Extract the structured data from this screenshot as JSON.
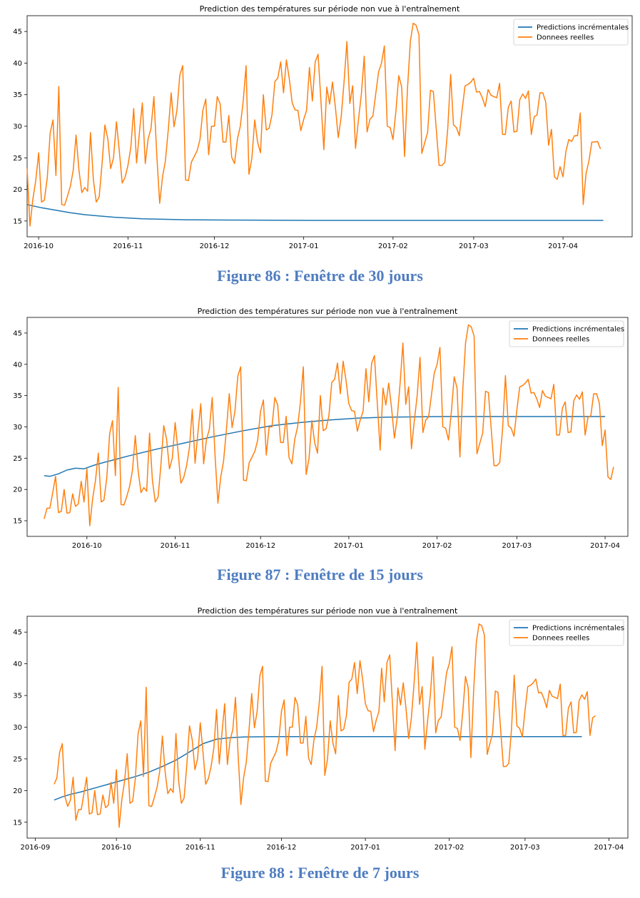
{
  "colors": {
    "prediction": "#1f77b4",
    "reelles": "#ff7f0e",
    "caption": "#4F7DC0"
  },
  "captions": [
    "Figure 86 : Fenêtre de 30 jours",
    "Figure 87 : Fenêtre de 15 jours",
    "Figure 88 : Fenêtre de 7 jours"
  ],
  "chart_data": [
    {
      "type": "line",
      "title": "Prediction des températures sur période non vue à l'entraînement",
      "legend": {
        "position": "top-right",
        "entries": [
          "Predictions incrémentales",
          "Donnees reelles"
        ]
      },
      "x_ticks": [
        "2016-10",
        "2016-11",
        "2016-12",
        "2017-01",
        "2017-02",
        "2017-03",
        "2017-04"
      ],
      "y_ticks": [
        "15",
        "20",
        "25",
        "30",
        "35",
        "40",
        "45"
      ],
      "xlim": [
        0,
        210
      ],
      "ylim": [
        12.5,
        47.5
      ],
      "x_tick_positions": [
        4,
        35,
        65,
        96,
        127,
        155,
        186
      ],
      "series": [
        {
          "name": "Predictions incrémentales",
          "x": [
            0,
            5,
            10,
            15,
            20,
            30,
            40,
            55,
            70,
            100,
            130,
            160,
            200
          ],
          "values": [
            17.6,
            17.1,
            16.7,
            16.3,
            16.0,
            15.6,
            15.35,
            15.2,
            15.15,
            15.1,
            15.1,
            15.1,
            15.1
          ]
        },
        {
          "name": "Donnees reelles",
          "x_start": 0,
          "values": [
            23.3,
            14.2,
            18.5,
            21.4,
            25.8,
            18.0,
            18.3,
            21.9,
            28.9,
            31.0,
            22.2,
            36.3,
            17.6,
            17.5,
            18.9,
            20.5,
            23.0,
            28.6,
            23.0,
            19.5,
            20.3,
            19.7,
            29.0,
            21.5,
            18.0,
            18.8,
            24.0,
            30.2,
            28.0,
            23.3,
            25.0,
            30.7,
            26.1,
            21.0,
            21.9,
            23.8,
            26.7,
            32.8,
            24.2,
            29.1,
            33.7,
            24.1,
            28.0,
            29.6,
            34.7,
            25.5,
            17.8,
            22.0,
            24.5,
            29.5,
            35.3,
            29.9,
            32.5,
            38.1,
            39.6,
            21.5,
            21.4,
            24.3,
            25.2,
            26.1,
            27.9,
            32.5,
            34.3,
            25.5,
            30.0,
            30.0,
            34.7,
            33.5,
            27.5,
            27.5,
            31.7,
            25.1,
            24.1,
            28.0,
            30.0,
            34.0,
            39.6,
            22.4,
            24.9,
            31.0,
            27.5,
            25.8,
            35.0,
            29.4,
            29.7,
            31.8,
            37.1,
            37.6,
            40.2,
            35.3,
            40.5,
            37.5,
            33.7,
            32.6,
            32.5,
            29.3,
            31.1,
            32.5,
            39.3,
            34.0,
            40.2,
            41.4,
            33.8,
            26.3,
            36.2,
            33.5,
            37.0,
            33.0,
            28.2,
            31.5,
            37.0,
            43.4,
            33.6,
            36.4,
            26.5,
            31.0,
            35.0,
            41.1,
            29.1,
            31.1,
            31.6,
            35.1,
            38.6,
            40.0,
            42.7,
            30.0,
            29.8,
            27.9,
            32.4,
            38.0,
            36.2,
            25.2,
            35.7,
            43.4,
            46.3,
            46.0,
            44.5,
            25.7,
            27.4,
            29.0,
            35.7,
            35.5,
            29.6,
            23.8,
            23.8,
            24.3,
            29.7,
            38.2,
            30.2,
            29.8,
            28.5,
            32.7,
            36.4,
            36.6,
            37.0,
            37.6,
            35.4,
            35.5,
            34.5,
            33.1,
            35.8,
            34.9,
            34.7,
            34.5,
            36.8,
            28.7,
            28.7,
            33.0,
            34.0,
            29.1,
            29.2,
            34.2,
            35.1,
            34.4,
            35.6,
            28.7,
            31.5,
            31.8,
            35.3,
            35.3,
            33.8,
            27.0,
            29.5,
            22.0,
            21.6,
            23.6,
            22.0,
            26.0,
            27.9,
            27.6,
            28.5,
            28.5,
            32.1,
            17.6,
            22.5,
            24.5,
            27.5,
            27.5,
            27.6,
            26.4
          ]
        }
      ]
    },
    {
      "type": "line",
      "title": "Prediction des températures sur période non vue à l'entraînement",
      "legend": {
        "position": "top-right",
        "entries": [
          "Predictions incrémentales",
          "Donnees reelles"
        ]
      },
      "x_ticks": [
        "2016-10",
        "2016-11",
        "2016-12",
        "2017-01",
        "2017-02",
        "2017-03",
        "2017-04"
      ],
      "y_ticks": [
        "15",
        "20",
        "25",
        "30",
        "35",
        "40",
        "45"
      ],
      "xlim": [
        -6,
        205
      ],
      "ylim": [
        12.5,
        47.5
      ],
      "x_tick_positions": [
        15,
        46,
        76,
        107,
        138,
        166,
        197
      ],
      "series": [
        {
          "name": "Predictions incrémentales",
          "x": [
            0,
            2,
            5,
            8,
            11,
            14,
            17,
            20,
            25,
            30,
            40,
            50,
            60,
            70,
            80,
            90,
            100,
            110,
            120,
            140,
            160,
            197
          ],
          "values": [
            22.2,
            22.1,
            22.5,
            23.1,
            23.4,
            23.3,
            23.8,
            24.2,
            24.8,
            25.4,
            26.5,
            27.5,
            28.5,
            29.4,
            30.2,
            30.7,
            31.1,
            31.4,
            31.55,
            31.65,
            31.65,
            31.65
          ]
        },
        {
          "name": "Donnees reelles",
          "x_start": 0,
          "values": [
            15.3,
            17.0,
            17.0,
            19.5,
            22.1,
            16.3,
            16.5,
            20.0,
            16.2,
            16.3,
            19.3,
            17.3,
            17.7,
            21.3,
            18.0,
            23.3,
            14.2,
            18.5,
            21.4,
            25.8,
            18.0,
            18.3,
            21.9,
            28.9,
            31.0,
            22.2,
            36.3,
            17.6,
            17.5,
            18.9,
            20.5,
            23.0,
            28.6,
            23.0,
            19.5,
            20.3,
            19.7,
            29.0,
            21.5,
            18.0,
            18.8,
            24.0,
            30.2,
            28.0,
            23.3,
            25.0,
            30.7,
            26.1,
            21.0,
            21.9,
            23.8,
            26.7,
            32.8,
            24.2,
            29.1,
            33.7,
            24.1,
            28.0,
            29.6,
            34.7,
            25.5,
            17.8,
            22.0,
            24.5,
            29.5,
            35.3,
            29.9,
            32.5,
            38.1,
            39.6,
            21.5,
            21.4,
            24.3,
            25.2,
            26.1,
            27.9,
            32.5,
            34.3,
            25.5,
            30.0,
            30.0,
            34.7,
            33.5,
            27.5,
            27.5,
            31.7,
            25.1,
            24.1,
            28.0,
            30.0,
            34.0,
            39.6,
            22.4,
            24.9,
            31.0,
            27.5,
            25.8,
            35.0,
            29.4,
            29.7,
            31.8,
            37.1,
            37.6,
            40.2,
            35.3,
            40.5,
            37.5,
            33.7,
            32.6,
            32.5,
            29.3,
            31.1,
            32.5,
            39.3,
            34.0,
            40.2,
            41.4,
            33.8,
            26.3,
            36.2,
            33.5,
            37.0,
            33.0,
            28.2,
            31.5,
            37.0,
            43.4,
            33.6,
            36.4,
            26.5,
            31.0,
            35.0,
            41.1,
            29.1,
            31.1,
            31.6,
            35.1,
            38.6,
            40.0,
            42.7,
            30.0,
            29.8,
            27.9,
            32.4,
            38.0,
            36.2,
            25.2,
            35.7,
            43.4,
            46.3,
            46.0,
            44.5,
            25.7,
            27.4,
            29.0,
            35.7,
            35.5,
            29.6,
            23.8,
            23.8,
            24.3,
            29.7,
            38.2,
            30.2,
            29.8,
            28.5,
            32.7,
            36.4,
            36.6,
            37.0,
            37.6,
            35.4,
            35.5,
            34.5,
            33.1,
            35.8,
            34.9,
            34.7,
            34.5,
            36.8,
            28.7,
            28.7,
            33.0,
            34.0,
            29.1,
            29.2,
            34.2,
            35.1,
            34.4,
            35.6,
            28.7,
            31.5,
            31.8,
            35.3,
            35.3,
            33.8,
            27.0,
            29.5,
            22.0,
            21.6,
            23.6
          ]
        }
      ]
    },
    {
      "type": "line",
      "title": "Prediction des températures sur période non vue à l'entraînement",
      "legend": {
        "position": "top-right",
        "entries": [
          "Predictions incrémentales",
          "Donnees reelles"
        ]
      },
      "x_ticks": [
        "2016-09",
        "2016-10",
        "2016-11",
        "2016-12",
        "2017-01",
        "2017-02",
        "2017-03",
        "2017-04"
      ],
      "y_ticks": [
        "15",
        "20",
        "25",
        "30",
        "35",
        "40",
        "45"
      ],
      "xlim": [
        -10,
        212
      ],
      "ylim": [
        12.5,
        47.5
      ],
      "x_tick_positions": [
        -7,
        23,
        54,
        84,
        115,
        146,
        174,
        205
      ],
      "series": [
        {
          "name": "Predictions incrémentales",
          "x": [
            0,
            3,
            6,
            10,
            15,
            20,
            25,
            30,
            35,
            40,
            45,
            50,
            55,
            60,
            65,
            70,
            80,
            90,
            110,
            130,
            150,
            170,
            195
          ],
          "values": [
            18.5,
            19.0,
            19.4,
            19.8,
            20.4,
            21.0,
            21.6,
            22.2,
            22.9,
            23.8,
            24.8,
            26.1,
            27.4,
            28.1,
            28.35,
            28.45,
            28.5,
            28.5,
            28.5,
            28.5,
            28.5,
            28.5,
            28.5
          ]
        },
        {
          "name": "Donnees reelles",
          "x_start": 0,
          "values": [
            21.0,
            22.0,
            26.0,
            27.4,
            19.0,
            17.5,
            18.5,
            22.1,
            15.3,
            17.0,
            17.0,
            19.5,
            22.1,
            16.3,
            16.5,
            20.0,
            16.2,
            16.3,
            19.3,
            17.3,
            17.7,
            21.3,
            18.0,
            23.3,
            14.2,
            18.5,
            21.4,
            25.8,
            18.0,
            18.3,
            21.9,
            28.9,
            31.0,
            22.2,
            36.3,
            17.6,
            17.5,
            18.9,
            20.5,
            23.0,
            28.6,
            23.0,
            19.5,
            20.3,
            19.7,
            29.0,
            21.5,
            18.0,
            18.8,
            24.0,
            30.2,
            28.0,
            23.3,
            25.0,
            30.7,
            26.1,
            21.0,
            21.9,
            23.8,
            26.7,
            32.8,
            24.2,
            29.1,
            33.7,
            24.1,
            28.0,
            29.6,
            34.7,
            25.5,
            17.8,
            22.0,
            24.5,
            29.5,
            35.3,
            29.9,
            32.5,
            38.1,
            39.6,
            21.5,
            21.4,
            24.3,
            25.2,
            26.1,
            27.9,
            32.5,
            34.3,
            25.5,
            30.0,
            30.0,
            34.7,
            33.5,
            27.5,
            27.5,
            31.7,
            25.1,
            24.1,
            28.0,
            30.0,
            34.0,
            39.6,
            22.4,
            24.9,
            31.0,
            27.5,
            25.8,
            35.0,
            29.4,
            29.7,
            31.8,
            37.1,
            37.6,
            40.2,
            35.3,
            40.5,
            37.5,
            33.7,
            32.6,
            32.5,
            29.3,
            31.1,
            32.5,
            39.3,
            34.0,
            40.2,
            41.4,
            33.8,
            26.3,
            36.2,
            33.5,
            37.0,
            33.0,
            28.2,
            31.5,
            37.0,
            43.4,
            33.6,
            36.4,
            26.5,
            31.0,
            35.0,
            41.1,
            29.1,
            31.1,
            31.6,
            35.1,
            38.6,
            40.0,
            42.7,
            30.0,
            29.8,
            27.9,
            32.4,
            38.0,
            36.2,
            25.2,
            35.7,
            43.4,
            46.3,
            46.0,
            44.5,
            25.7,
            27.4,
            29.0,
            35.7,
            35.5,
            29.6,
            23.8,
            23.8,
            24.3,
            29.7,
            38.2,
            30.2,
            29.8,
            28.5,
            32.7,
            36.4,
            36.6,
            37.0,
            37.6,
            35.4,
            35.5,
            34.5,
            33.1,
            35.8,
            34.9,
            34.7,
            34.5,
            36.8,
            28.7,
            28.7,
            33.0,
            34.0,
            29.1,
            29.2,
            34.2,
            35.1,
            34.4,
            35.6,
            28.7,
            31.5,
            31.8
          ]
        }
      ]
    }
  ]
}
